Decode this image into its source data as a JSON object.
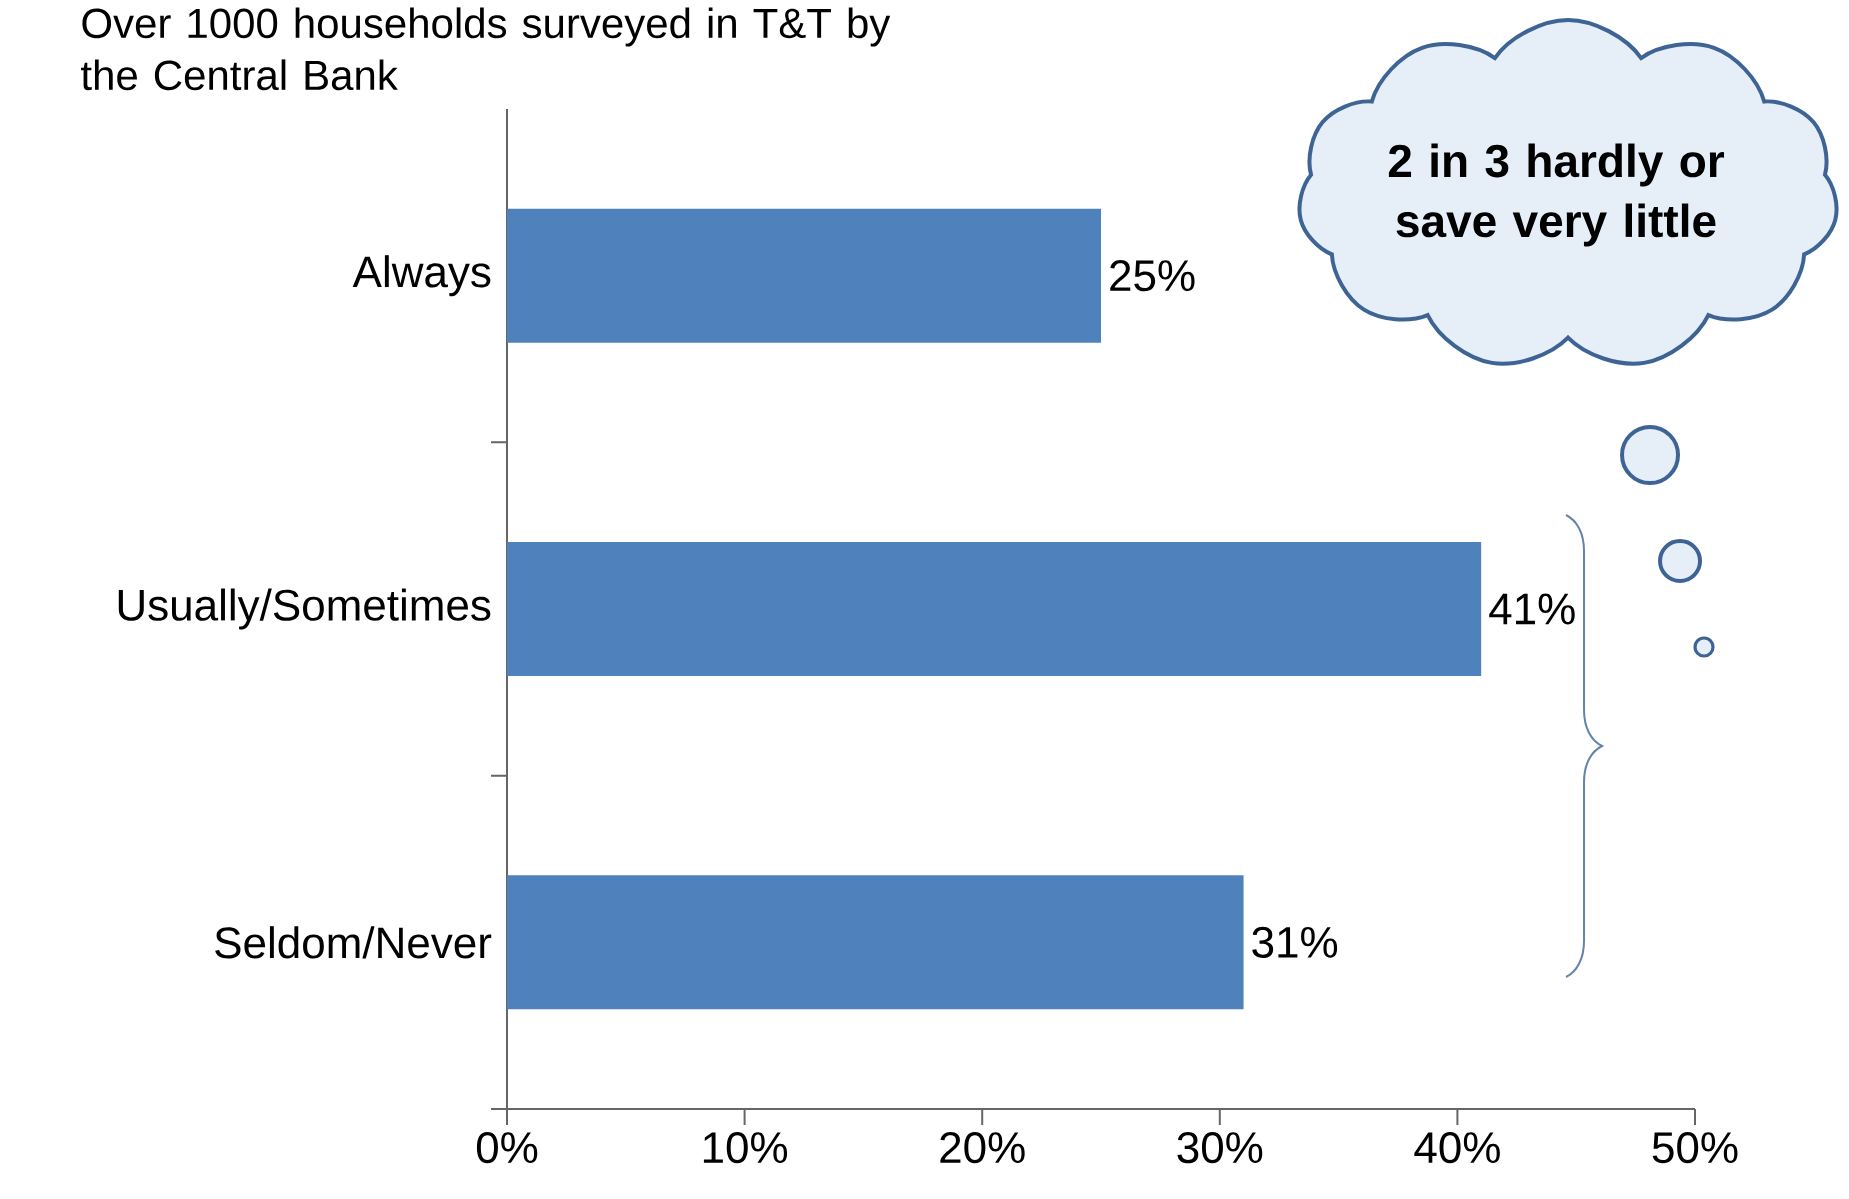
{
  "chart_data": {
    "type": "bar",
    "orientation": "horizontal",
    "title": "Over 1000 households surveyed in T&T by the Central Bank",
    "categories": [
      "Always",
      "Usually/Sometimes",
      "Seldom/Never"
    ],
    "values": [
      25,
      41,
      31
    ],
    "value_labels": [
      "25%",
      "41%",
      "31%"
    ],
    "color": "#4f81bd",
    "xlim": [
      0,
      50
    ],
    "xticks": [
      {
        "value": 0,
        "label": "0%"
      },
      {
        "value": 10,
        "label": "10%"
      },
      {
        "value": 20,
        "label": "20%"
      },
      {
        "value": 30,
        "label": "30%"
      },
      {
        "value": 40,
        "label": "40%"
      },
      {
        "value": 50,
        "label": "50%"
      }
    ],
    "annotations": [
      "2 in 3 hardly or save very little"
    ]
  }
}
